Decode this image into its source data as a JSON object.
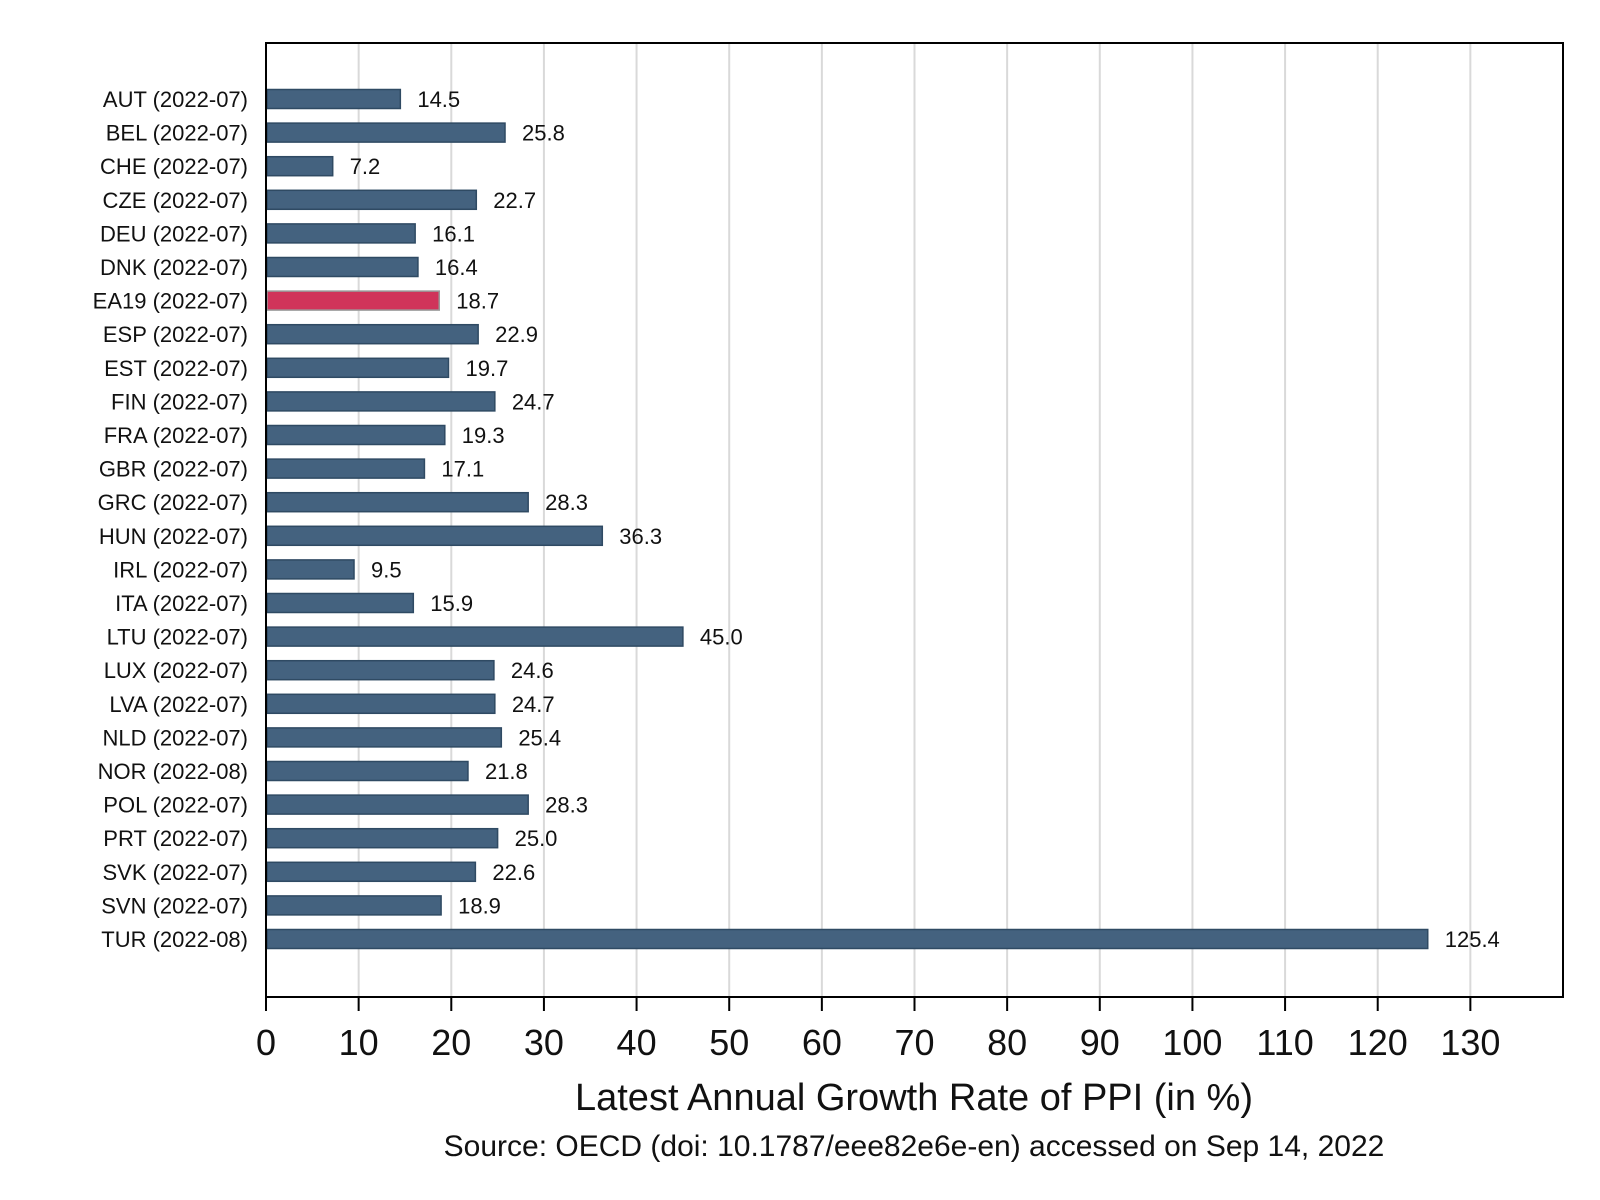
{
  "chart_data": {
    "type": "bar",
    "orientation": "horizontal",
    "categories": [
      "AUT (2022-07)",
      "BEL (2022-07)",
      "CHE (2022-07)",
      "CZE (2022-07)",
      "DEU (2022-07)",
      "DNK (2022-07)",
      "EA19 (2022-07)",
      "ESP (2022-07)",
      "EST (2022-07)",
      "FIN (2022-07)",
      "FRA (2022-07)",
      "GBR (2022-07)",
      "GRC (2022-07)",
      "HUN (2022-07)",
      "IRL (2022-07)",
      "ITA (2022-07)",
      "LTU (2022-07)",
      "LUX (2022-07)",
      "LVA (2022-07)",
      "NLD (2022-07)",
      "NOR (2022-08)",
      "POL (2022-07)",
      "PRT (2022-07)",
      "SVK (2022-07)",
      "SVN (2022-07)",
      "TUR (2022-08)"
    ],
    "values": [
      14.5,
      25.8,
      7.2,
      22.7,
      16.1,
      16.4,
      18.7,
      22.9,
      19.7,
      24.7,
      19.3,
      17.1,
      28.3,
      36.3,
      9.5,
      15.9,
      45.0,
      24.6,
      24.7,
      25.4,
      21.8,
      28.3,
      25.0,
      22.6,
      18.9,
      125.4
    ],
    "value_labels": [
      "14.5",
      "25.8",
      "7.2",
      "22.7",
      "16.1",
      "16.4",
      "18.7",
      "22.9",
      "19.7",
      "24.7",
      "19.3",
      "17.1",
      "28.3",
      "36.3",
      "9.5",
      "15.9",
      "45.0",
      "24.6",
      "24.7",
      "25.4",
      "21.8",
      "28.3",
      "25.0",
      "22.6",
      "18.9",
      "125.4"
    ],
    "highlight_index": 6,
    "colors": {
      "bar": "#44627f",
      "bar_edge": "#2f4a63",
      "highlight": "#d0345a",
      "highlight_edge": "#9a9a9a",
      "grid": "#d9d9d9"
    },
    "xlim": [
      0,
      140
    ],
    "xticks": [
      0,
      10,
      20,
      30,
      40,
      50,
      60,
      70,
      80,
      90,
      100,
      110,
      120,
      130
    ],
    "xlabel": "Latest Annual Growth Rate of PPI (in %)",
    "source": "Source: OECD (doi: 10.1787/eee82e6e-en) accessed on Sep 14, 2022",
    "grid": "vertical",
    "legend": "none"
  }
}
